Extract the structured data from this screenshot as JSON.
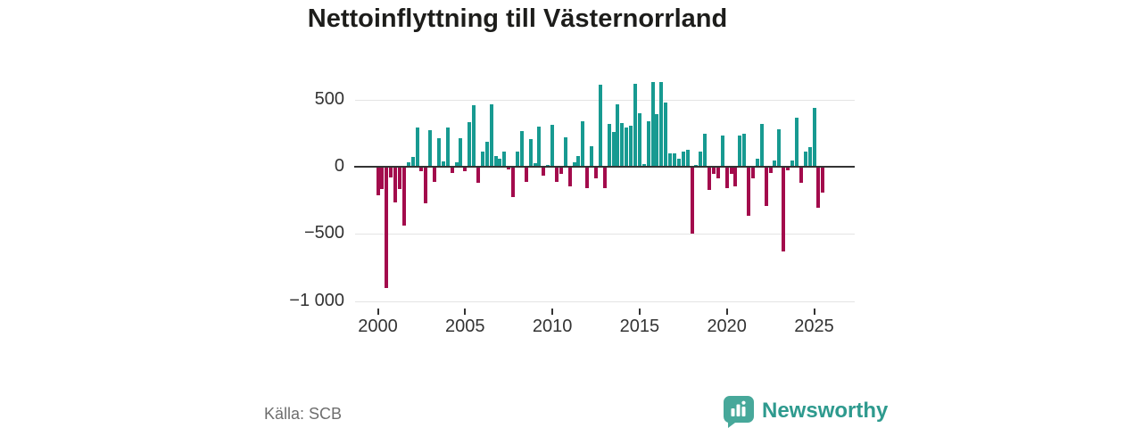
{
  "title": "Nettoinflyttning till Västernorrland",
  "source": "Källa: SCB",
  "branding": {
    "name": "Newsworthy"
  },
  "colors": {
    "positive": "#179a91",
    "negative": "#a30b4c",
    "zero_line": "#333333",
    "gridline": "#e4e4e4",
    "title_text": "#1d1d1b",
    "axis_text": "#333333",
    "source_text": "#6e6e6e",
    "brand_text": "#2e9a8e",
    "logo_bg": "#47a89a"
  },
  "chart_data": {
    "type": "bar",
    "title": "Nettoinflyttning till Västernorrland",
    "frequency": "quarterly",
    "start": "2000 Q1",
    "end": "2025 Q3",
    "ylim": [
      -1050,
      680
    ],
    "grid": "horizontal-only",
    "legend": "none",
    "y_ticks": [
      {
        "label": "500",
        "value": 500
      },
      {
        "label": "0",
        "value": 0
      },
      {
        "label": "−500",
        "value": -500
      },
      {
        "label": "−1 000",
        "value": -1000
      }
    ],
    "x_ticks": [
      {
        "label": "2000",
        "index": 0
      },
      {
        "label": "2005",
        "index": 20
      },
      {
        "label": "2010",
        "index": 40
      },
      {
        "label": "2015",
        "index": 60
      },
      {
        "label": "2020",
        "index": 80
      },
      {
        "label": "2025",
        "index": 100
      }
    ],
    "series": [
      {
        "name": "Nettoinflyttning",
        "values": [
          -210,
          -165,
          -905,
          -80,
          -265,
          -165,
          -435,
          30,
          70,
          290,
          -30,
          -275,
          275,
          -115,
          210,
          40,
          290,
          -45,
          35,
          210,
          -35,
          335,
          460,
          -120,
          110,
          185,
          465,
          80,
          62,
          113,
          -20,
          -227,
          115,
          267,
          -113,
          207,
          29,
          300,
          -67,
          10,
          311,
          -111,
          -56,
          218,
          -149,
          33,
          78,
          340,
          -162,
          151,
          -89,
          611,
          -162,
          322,
          260,
          467,
          326,
          295,
          307,
          615,
          400,
          20,
          340,
          630,
          393,
          633,
          478,
          100,
          100,
          60,
          115,
          127,
          -500,
          15,
          115,
          249,
          -173,
          -56,
          -89,
          233,
          -162,
          -56,
          -145,
          233,
          249,
          -367,
          -89,
          62,
          322,
          -295,
          -44,
          49,
          278,
          -633,
          -29,
          49,
          367,
          -118,
          111,
          149,
          440,
          -305,
          -190
        ]
      }
    ]
  }
}
